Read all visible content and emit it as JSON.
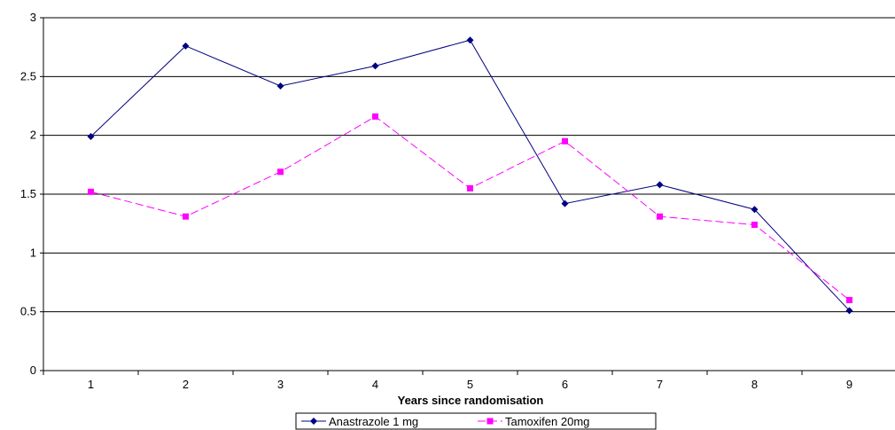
{
  "chart_data": {
    "type": "line",
    "title": "",
    "xlabel": "Years since randomisation",
    "ylabel": "",
    "categories": [
      "1",
      "2",
      "3",
      "4",
      "5",
      "6",
      "7",
      "8",
      "9"
    ],
    "ylim": [
      0,
      3
    ],
    "yticks": [
      "0",
      "0.5",
      "1",
      "1.5",
      "2",
      "2.5",
      "3"
    ],
    "grid": "horizontal",
    "legend_position": "bottom",
    "series": [
      {
        "name": "Anastrazole 1 mg",
        "values": [
          1.99,
          2.76,
          2.42,
          2.59,
          2.81,
          1.42,
          1.58,
          1.37,
          0.51
        ],
        "color": "#000080",
        "marker": "diamond",
        "line_style": "solid"
      },
      {
        "name": "Tamoxifen 20mg",
        "values": [
          1.52,
          1.31,
          1.69,
          2.16,
          1.55,
          1.95,
          1.31,
          1.24,
          0.6
        ],
        "color": "#FF00FF",
        "marker": "square",
        "line_style": "dashed"
      }
    ]
  }
}
